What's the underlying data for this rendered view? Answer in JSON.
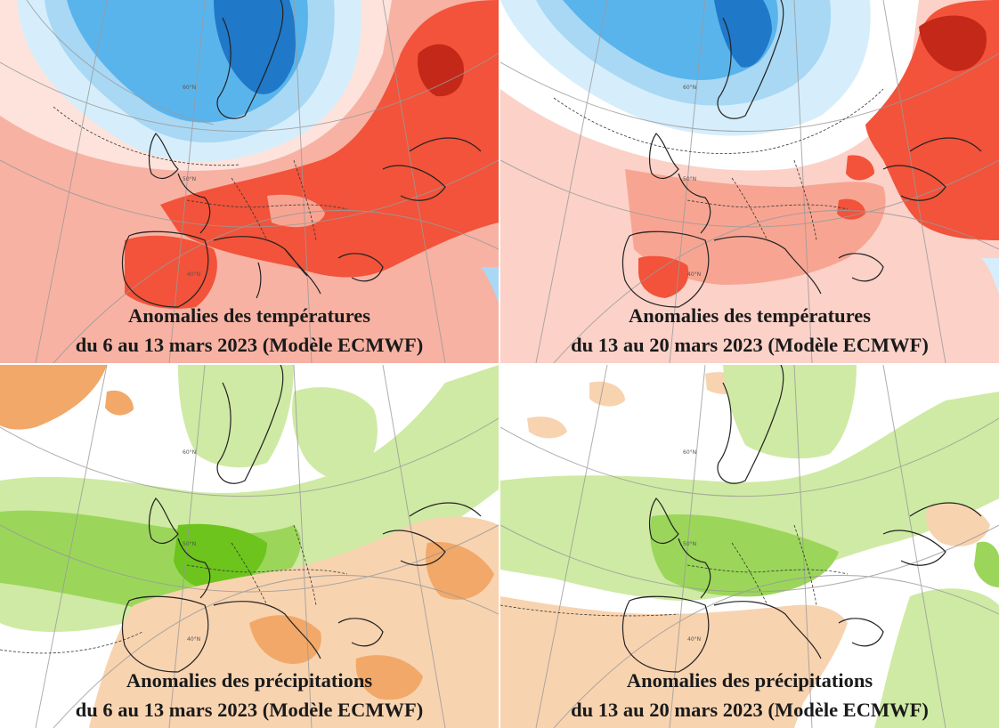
{
  "panels": {
    "temp_week1": {
      "title": "Anomalies des températures",
      "period": "du 6 au 13 mars 2023 (Modèle ECMWF)"
    },
    "temp_week2": {
      "title": "Anomalies des températures",
      "period": "du 13 au 20 mars 2023 (Modèle ECMWF)"
    },
    "precip_week1": {
      "title": "Anomalies des précipitations",
      "period": "du 6 au 13 mars 2023 (Modèle ECMWF)"
    },
    "precip_week2": {
      "title": "Anomalies des précipitations",
      "period": "du 13 au 20 mars 2023 (Modèle ECMWF)"
    }
  },
  "graticule_labels": [
    "60°N",
    "50°N",
    "40°N"
  ],
  "colors": {
    "cold_strong": "#1f78c8",
    "cold": "#5ab4ec",
    "cold_light": "#a9d8f5",
    "cold_pale": "#d6eefb",
    "warm_pale": "#fbd1c8",
    "warm_light": "#f7a592",
    "warm": "#f2533a",
    "warm_strong": "#c42818",
    "wet_strong": "#6cc41c",
    "wet": "#9bd65a",
    "wet_light": "#cfeaa4",
    "dry_light": "#f8d3b0",
    "dry": "#f2a868",
    "dry_strong": "#ee8a3a",
    "coast": "#222222"
  }
}
